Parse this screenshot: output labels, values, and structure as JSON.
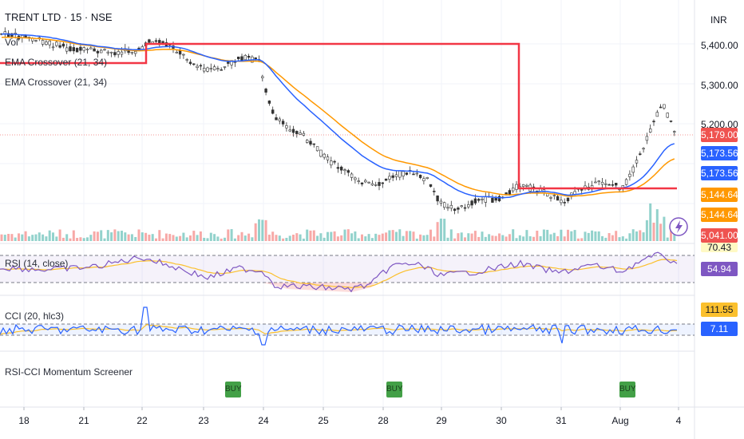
{
  "header": {
    "symbol": "TRENT LTD · 15 · NSE",
    "vol_label": "Vol",
    "ema_label_1": "EMA Crossover (21, 34)",
    "ema_label_2": "EMA Crossover (21, 34)",
    "currency": "INR"
  },
  "price_axis": [
    "5,400.00",
    "5,300.00",
    "5,200.00"
  ],
  "price_tags": [
    {
      "value": "5,179.00",
      "color": "#ef5350"
    },
    {
      "value": "5,173.56",
      "color": "#2962ff"
    },
    {
      "value": "5,173.56",
      "color": "#2962ff"
    },
    {
      "value": "5,144.64",
      "color": "#ff9800"
    },
    {
      "value": "5,144.64",
      "color": "#ff9800"
    },
    {
      "value": "5,041.00",
      "color": "#ef5350"
    }
  ],
  "rsi": {
    "label": "RSI (14, close)",
    "value_top": "70.43",
    "value": "54.94"
  },
  "cci": {
    "label": "CCI (20, hlc3)",
    "value_top": "111.55",
    "value": "7.11"
  },
  "screener": {
    "label": "RSI-CCI Momentum Screener",
    "buy_label": "BUY"
  },
  "x_axis": [
    "18",
    "21",
    "22",
    "23",
    "24",
    "25",
    "28",
    "29",
    "30",
    "31",
    "Aug",
    "4"
  ],
  "colors": {
    "up": "#26a69a",
    "down": "#ef5350",
    "ema_fast": "#2962ff",
    "ema_slow": "#ff9800",
    "red_line": "#f23645",
    "rsi": "#7e57c2",
    "rsi_ma": "#fbc02d",
    "cci": "#2962ff",
    "cci_ma": "#fbc02d"
  },
  "icons": {
    "lightning": "lightning-icon"
  }
}
